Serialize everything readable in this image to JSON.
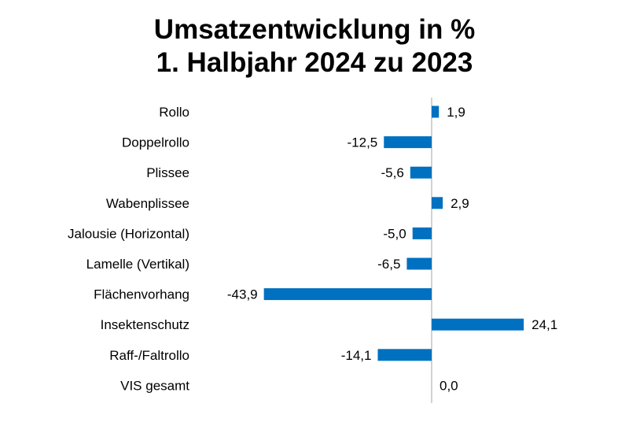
{
  "chart_data": {
    "type": "bar",
    "orientation": "horizontal",
    "title": "Umsatzentwicklung in %",
    "subtitle": "1. Halbjahr 2024 zu 2023",
    "categories": [
      "Rollo",
      "Doppelrollo",
      "Plissee",
      "Wabenplissee",
      "Jalousie (Horizontal)",
      "Lamelle (Vertikal)",
      "Flächenvorhang",
      "Insektenschutz",
      "Raff-/Faltrollo",
      "VIS gesamt"
    ],
    "values": [
      1.9,
      -12.5,
      -5.6,
      2.9,
      -5.0,
      -6.5,
      -43.9,
      24.1,
      -14.1,
      0.0
    ],
    "value_labels": [
      "1,9",
      "-12,5",
      "-5,6",
      "2,9",
      "-5,0",
      "-6,5",
      "-43,9",
      "24,1",
      "-14,1",
      "0,0"
    ],
    "bar_color": "#0070C0",
    "grid": false,
    "legend": "none"
  }
}
